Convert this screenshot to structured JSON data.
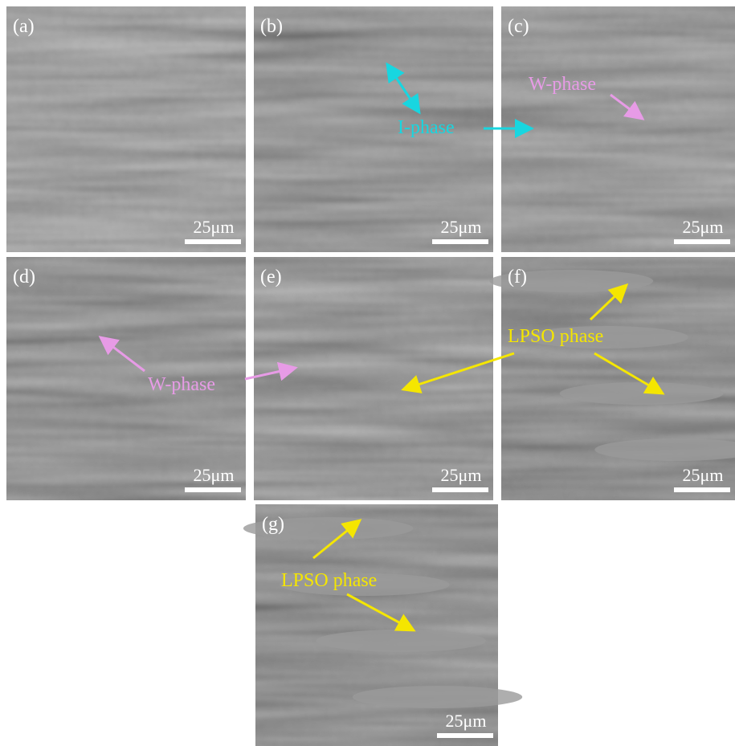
{
  "panels": [
    {
      "label": "(a)",
      "scale_bar": "25μm"
    },
    {
      "label": "(b)",
      "scale_bar": "25μm"
    },
    {
      "label": "(c)",
      "scale_bar": "25μm"
    },
    {
      "label": "(d)",
      "scale_bar": "25μm"
    },
    {
      "label": "(e)",
      "scale_bar": "25μm"
    },
    {
      "label": "(f)",
      "scale_bar": "25μm"
    },
    {
      "label": "(g)",
      "scale_bar": "25μm"
    }
  ],
  "annotations": [
    {
      "text": "I-phase"
    },
    {
      "text": "W-phase"
    },
    {
      "text": "W-phase"
    },
    {
      "text": "LPSO phase"
    },
    {
      "text": "LPSO phase"
    }
  ]
}
